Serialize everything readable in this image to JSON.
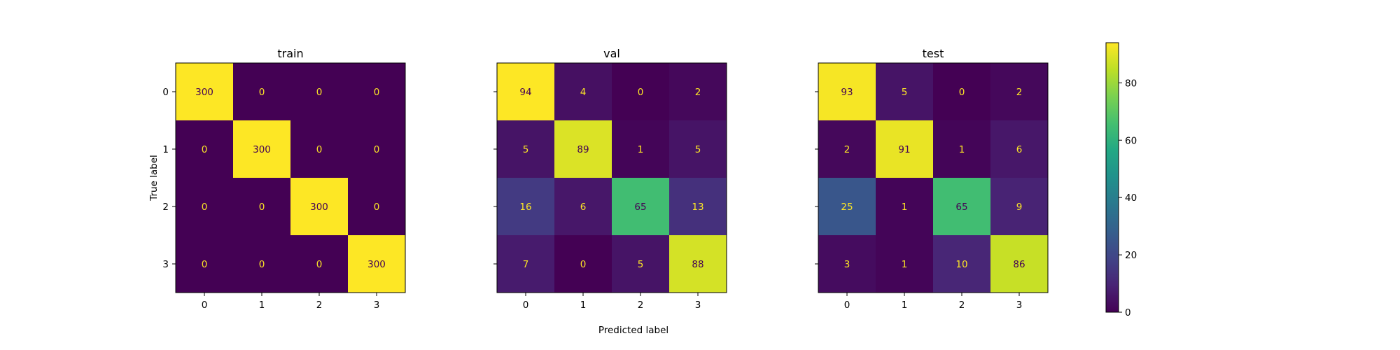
{
  "chart_data": {
    "type": "heatmap",
    "xlabel": "Predicted label",
    "ylabel": "True label",
    "class_labels": [
      "0",
      "1",
      "2",
      "3"
    ],
    "colormap": "viridis",
    "color_range": [
      0,
      94
    ],
    "text_colors": {
      "on_dark": "#fde725",
      "on_light": "#440154"
    },
    "colorbar": {
      "ticks": [
        0,
        20,
        40,
        60,
        80
      ]
    },
    "panels": [
      {
        "title": "train",
        "matrix": [
          [
            300,
            0,
            0,
            0
          ],
          [
            0,
            300,
            0,
            0
          ],
          [
            0,
            0,
            300,
            0
          ],
          [
            0,
            0,
            0,
            300
          ]
        ]
      },
      {
        "title": "val",
        "matrix": [
          [
            94,
            4,
            0,
            2
          ],
          [
            5,
            89,
            1,
            5
          ],
          [
            16,
            6,
            65,
            13
          ],
          [
            7,
            0,
            5,
            88
          ]
        ]
      },
      {
        "title": "test",
        "matrix": [
          [
            93,
            5,
            0,
            2
          ],
          [
            2,
            91,
            1,
            6
          ],
          [
            25,
            1,
            65,
            9
          ],
          [
            3,
            1,
            10,
            86
          ]
        ]
      }
    ]
  }
}
